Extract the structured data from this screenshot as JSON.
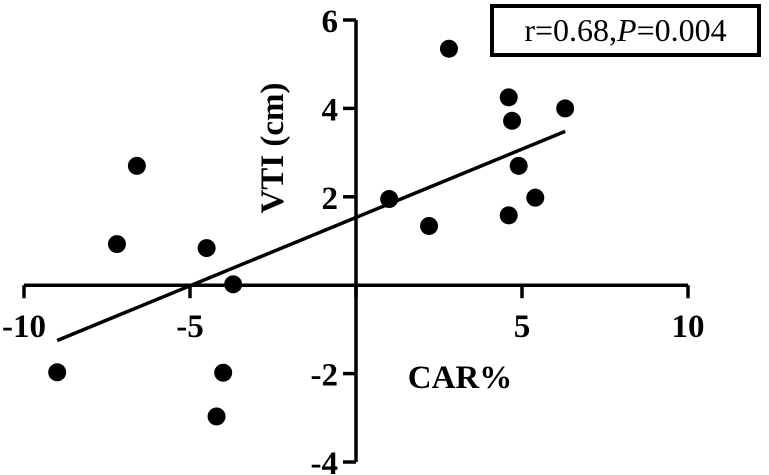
{
  "chart_data": {
    "type": "scatter",
    "xlabel": "CAR%",
    "ylabel": "VTI (cm)",
    "xlim": [
      -10,
      10
    ],
    "ylim": [
      -4,
      6
    ],
    "x_ticks": [
      -10,
      -5,
      5,
      10
    ],
    "y_ticks": [
      -4,
      -2,
      2,
      4,
      6
    ],
    "x_tick_labels": [
      "-10",
      "-5",
      "5",
      "10"
    ],
    "y_tick_labels": [
      "-4",
      "-2",
      "2",
      "4",
      "6"
    ],
    "grid": false,
    "points": [
      {
        "x": -9.0,
        "y": -1.97
      },
      {
        "x": -7.2,
        "y": 0.93
      },
      {
        "x": -6.6,
        "y": 2.7
      },
      {
        "x": -4.5,
        "y": 0.84
      },
      {
        "x": -4.2,
        "y": -2.97
      },
      {
        "x": -4.0,
        "y": -1.98
      },
      {
        "x": -3.7,
        "y": 0.02
      },
      {
        "x": 1.0,
        "y": 1.95
      },
      {
        "x": 2.2,
        "y": 1.34
      },
      {
        "x": 2.8,
        "y": 5.35
      },
      {
        "x": 4.6,
        "y": 4.25
      },
      {
        "x": 4.7,
        "y": 3.72
      },
      {
        "x": 4.9,
        "y": 2.7
      },
      {
        "x": 4.6,
        "y": 1.58
      },
      {
        "x": 5.4,
        "y": 1.98
      },
      {
        "x": 6.3,
        "y": 4.0
      }
    ],
    "regression_line": {
      "x": [
        -9.0,
        6.3
      ],
      "y": [
        -1.25,
        3.48
      ]
    },
    "annotation": {
      "r_text": "r=0.68, ",
      "p_symbol": "P",
      "p_text": "=0.004"
    }
  }
}
